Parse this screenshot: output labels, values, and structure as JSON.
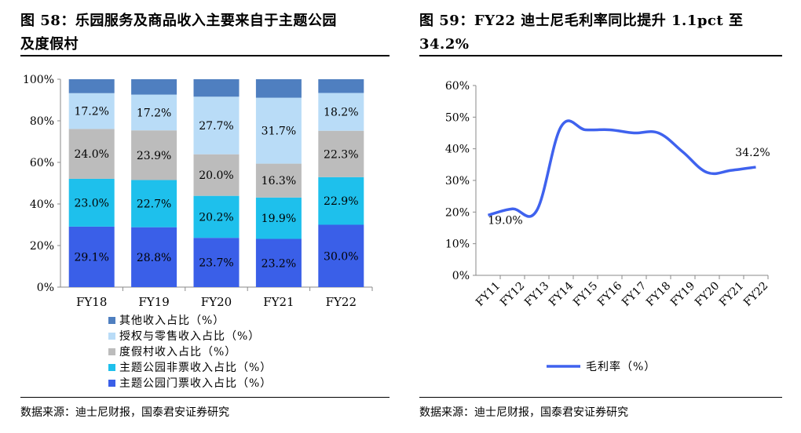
{
  "left": {
    "title_line1": "图 58：乐园服务及商品收入主要来自于主题公园",
    "title_line2": "及度假村",
    "source": "数据来源：迪士尼财报，国泰君安证券研究"
  },
  "right": {
    "title_line1": "图 59：FY22 迪士尼毛利率同比提升 1.1pct 至",
    "title_line2": "34.2%",
    "source": "数据来源：迪士尼财报，国泰君安证券研究"
  },
  "chart_data": [
    {
      "type": "bar",
      "stacked": true,
      "categories": [
        "FY18",
        "FY19",
        "FY20",
        "FY21",
        "FY22"
      ],
      "y_ticks": [
        "0%",
        "20%",
        "40%",
        "60%",
        "80%",
        "100%"
      ],
      "ylim": [
        0,
        100
      ],
      "grid": false,
      "legend_position": "bottom",
      "series": [
        {
          "name": "主题公园门票收入占比（%）",
          "color": "#3a5fe8",
          "values": [
            29.1,
            28.8,
            23.7,
            23.2,
            30.0
          ],
          "labels": [
            "29.1%",
            "28.8%",
            "23.7%",
            "23.2%",
            "30.0%"
          ]
        },
        {
          "name": "主题公园非票收入占比（%）",
          "color": "#1ec0ec",
          "values": [
            23.0,
            22.7,
            20.2,
            19.9,
            22.9
          ],
          "labels": [
            "23.0%",
            "22.7%",
            "20.2%",
            "19.9%",
            "22.9%"
          ]
        },
        {
          "name": "度假村收入占比（%）",
          "color": "#bcbcbc",
          "values": [
            24.0,
            23.9,
            20.0,
            16.3,
            22.3
          ],
          "labels": [
            "24.0%",
            "23.9%",
            "20.0%",
            "16.3%",
            "22.3%"
          ]
        },
        {
          "name": "授权与零售收入占比（%）",
          "color": "#b9dcf7",
          "values": [
            17.2,
            17.2,
            27.7,
            31.7,
            18.2
          ],
          "labels": [
            "17.2%",
            "17.2%",
            "27.7%",
            "31.7%",
            "18.2%"
          ]
        },
        {
          "name": "其他收入占比（%）",
          "color": "#4f7fc0",
          "values": [
            6.7,
            7.4,
            8.4,
            8.9,
            6.6
          ],
          "labels": [
            "",
            "",
            "",
            "",
            ""
          ]
        }
      ]
    },
    {
      "type": "line",
      "categories": [
        "FY11",
        "FY12",
        "FY13",
        "FY14",
        "FY15",
        "FY16",
        "FY17",
        "FY18",
        "FY19",
        "FY20",
        "FY21",
        "FY22"
      ],
      "y_ticks": [
        "0%",
        "10%",
        "20%",
        "30%",
        "40%",
        "50%",
        "60%"
      ],
      "ylim": [
        0,
        60
      ],
      "grid": false,
      "legend_position": "bottom",
      "series": [
        {
          "name": "毛利率（%）",
          "color": "#3f62ee",
          "values": [
            19.0,
            21.0,
            20.5,
            47.0,
            46.0,
            46.0,
            45.0,
            45.0,
            39.0,
            32.5,
            33.2,
            34.2
          ]
        }
      ],
      "data_labels": [
        {
          "index": 0,
          "text": "19.0%"
        },
        {
          "index": 11,
          "text": "34.2%"
        }
      ]
    }
  ]
}
